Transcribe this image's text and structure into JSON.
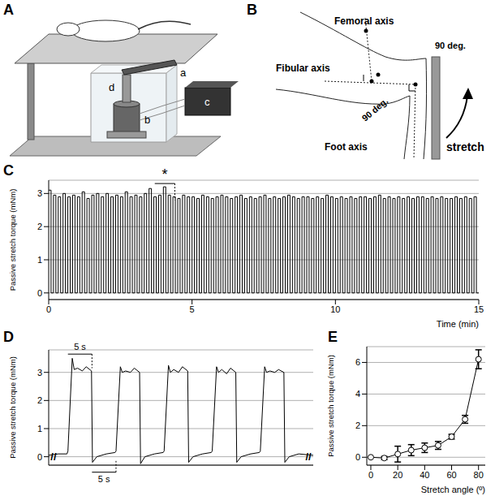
{
  "panels": [
    "A",
    "B",
    "C",
    "D",
    "E"
  ],
  "diagram_A": {
    "parts": [
      "a",
      "b",
      "c",
      "d"
    ]
  },
  "diagram_B": {
    "femoral": "Femoral axis",
    "fibular": "Fibular axis",
    "foot": "Foot axis",
    "angle": "90 deg.",
    "stretch": "stretch"
  },
  "chart_data": [
    {
      "type": "line",
      "y_label": "Passive stretch torque (mNm)",
      "x_label": "Time (min)",
      "xlim": [
        0,
        15
      ],
      "xticks": [
        0,
        5,
        10,
        15
      ],
      "ylim": [
        -0.2,
        3.4
      ],
      "yticks": [
        0,
        1,
        2,
        3
      ],
      "grid": true,
      "annotations": [
        {
          "text": "*",
          "x": [
            3.7,
            4.4
          ],
          "y": 3.3
        }
      ],
      "series": [
        {
          "color": "#000000",
          "line_style": "step",
          "marker": "none",
          "x": [
            0,
            0.083,
            0.167,
            0.25,
            0.333,
            0.417,
            0.5,
            0.583,
            0.667,
            0.75,
            0.833,
            0.917,
            1,
            1.083,
            1.167,
            1.25,
            1.333,
            1.417,
            1.5,
            1.583,
            1.667,
            1.75,
            1.833,
            1.917,
            2,
            2.083,
            2.167,
            2.25,
            2.333,
            2.417,
            2.5,
            2.583,
            2.667,
            2.75,
            2.833,
            2.917,
            3,
            3.083,
            3.167,
            3.25,
            3.333,
            3.417,
            3.5,
            3.583,
            3.667,
            3.75,
            3.833,
            3.917,
            4,
            4.083,
            4.167,
            4.25,
            4.333,
            4.417,
            4.5,
            4.583,
            4.667,
            4.75,
            4.833,
            4.917,
            5,
            5.083,
            5.167,
            5.25,
            5.333,
            5.417,
            5.5,
            5.583,
            5.667,
            5.75,
            5.833,
            5.917,
            6,
            6.083,
            6.167,
            6.25,
            6.333,
            6.417,
            6.5,
            6.583,
            6.667,
            6.75,
            6.833,
            6.917,
            7,
            7.083,
            7.167,
            7.25,
            7.333,
            7.417,
            7.5,
            7.583,
            7.667,
            7.75,
            7.833,
            7.917,
            8,
            8.083,
            8.167,
            8.25,
            8.333,
            8.417,
            8.5,
            8.583,
            8.667,
            8.75,
            8.833,
            8.917,
            9,
            9.083,
            9.167,
            9.25,
            9.333,
            9.417,
            9.5,
            9.583,
            9.667,
            9.75,
            9.833,
            9.917,
            10,
            10.083,
            10.167,
            10.25,
            10.333,
            10.417,
            10.5,
            10.583,
            10.667,
            10.75,
            10.833,
            10.917,
            11,
            11.083,
            11.167,
            11.25,
            11.333,
            11.417,
            11.5,
            11.583,
            11.667,
            11.75,
            11.833,
            11.917,
            12,
            12.083,
            12.167,
            12.25,
            12.333,
            12.417,
            12.5,
            12.583,
            12.667,
            12.75,
            12.833,
            12.917,
            13,
            13.083,
            13.167,
            13.25,
            13.333,
            13.417,
            13.5,
            13.583,
            13.667,
            13.75,
            13.833,
            13.917,
            14,
            14.083,
            14.167,
            14.25,
            14.333,
            14.417,
            14.5,
            14.583,
            14.667,
            14.75,
            14.833,
            14.917,
            15
          ],
          "values": [
            3.1,
            0,
            2.95,
            0,
            2.9,
            0,
            3.0,
            0,
            2.9,
            0,
            2.95,
            0,
            2.9,
            0,
            3.05,
            0,
            2.85,
            0,
            2.95,
            0,
            3.0,
            0,
            2.9,
            0,
            3.0,
            0,
            2.9,
            0,
            2.95,
            0,
            2.9,
            0,
            3.05,
            0,
            2.9,
            0,
            2.95,
            0,
            2.9,
            0,
            3.0,
            0,
            3.15,
            0,
            2.9,
            0,
            2.95,
            0,
            3.2,
            0,
            2.95,
            0,
            2.9,
            0,
            2.85,
            0,
            2.95,
            0,
            2.9,
            0,
            2.9,
            0,
            2.85,
            0,
            2.95,
            0,
            2.9,
            0,
            2.85,
            0,
            2.9,
            0,
            2.95,
            0,
            2.9,
            0,
            2.85,
            0,
            2.9,
            0,
            2.95,
            0,
            2.85,
            0,
            2.9,
            0,
            2.85,
            0,
            2.9,
            0,
            2.95,
            0,
            2.85,
            0,
            2.9,
            0,
            2.85,
            0,
            2.9,
            0,
            2.95,
            0,
            2.9,
            0,
            2.85,
            0,
            2.9,
            0,
            2.9,
            0,
            2.85,
            0,
            2.9,
            0,
            2.85,
            0,
            2.95,
            0,
            2.9,
            0,
            2.85,
            0,
            2.9,
            0,
            2.85,
            0,
            2.9,
            0,
            2.85,
            0,
            2.9,
            0,
            2.9,
            0,
            2.85,
            0,
            2.9,
            0,
            2.95,
            0,
            2.85,
            0,
            2.9,
            0,
            2.85,
            0,
            2.9,
            0,
            2.85,
            0,
            2.9,
            0,
            2.85,
            0,
            2.9,
            0,
            2.9,
            0,
            2.85,
            0,
            2.9,
            0,
            2.85,
            0,
            2.9,
            0,
            2.85,
            0,
            2.85,
            0,
            2.9,
            0,
            2.85,
            0,
            2.9,
            0,
            2.85,
            0,
            2.9,
            0,
            0
          ]
        }
      ]
    },
    {
      "type": "line",
      "y_label": "Passive stretch torque (mNm)",
      "xlim": [
        0,
        55
      ],
      "ylim": [
        -0.3,
        3.8
      ],
      "yticks": [
        0,
        1,
        2,
        3
      ],
      "grid": true,
      "tick_labels": "y",
      "annotations": [
        {
          "text": "5 s",
          "x": [
            4,
            9
          ],
          "y": 3.65
        },
        {
          "text": "5 s",
          "x": [
            9,
            14
          ],
          "y": -0.55
        }
      ],
      "break_marks": {
        "text": "//",
        "x": [
          1,
          54
        ],
        "y": 0
      },
      "series": [
        {
          "color": "#000000",
          "line_style": "solid",
          "marker": "none",
          "x": [
            0,
            2,
            3.8,
            4,
            4.9,
            5.3,
            6,
            7,
            7.8,
            8.9,
            9.1,
            10,
            12,
            13.8,
            14,
            14.9,
            15.3,
            16,
            17,
            17.8,
            18.9,
            19.1,
            20,
            22,
            23.8,
            24,
            24.9,
            25.3,
            26,
            27,
            27.8,
            28.9,
            29.1,
            30,
            32,
            33.8,
            34,
            34.9,
            35.3,
            36,
            37,
            37.8,
            38.9,
            39.1,
            40,
            42,
            43.8,
            44,
            44.9,
            45.3,
            46,
            47,
            47.8,
            48.9,
            49.1,
            50,
            52,
            55
          ],
          "values": [
            0.05,
            0.1,
            0.1,
            0.2,
            3.5,
            3.1,
            3.15,
            3.05,
            3.2,
            3.05,
            -0.2,
            0,
            0.1,
            0.15,
            0.2,
            3.2,
            3.0,
            3.05,
            3.0,
            3.15,
            3.0,
            -0.25,
            0,
            0.1,
            0.15,
            0.2,
            3.25,
            3.0,
            3.1,
            3.0,
            3.2,
            3.05,
            -0.2,
            0,
            0.1,
            0.15,
            0.2,
            3.2,
            3.0,
            3.1,
            2.95,
            3.15,
            3.0,
            -0.2,
            0,
            0.1,
            0.15,
            0.2,
            3.2,
            3.0,
            3.05,
            3.0,
            3.1,
            3.0,
            -0.2,
            0,
            0.1,
            0.05
          ]
        }
      ]
    },
    {
      "type": "line",
      "y_label": "Passive stretch torque (mNm)",
      "x_label": "Stretch angle (º)",
      "xlim": [
        -3,
        85
      ],
      "xticks": [
        0,
        20,
        40,
        60,
        80
      ],
      "ylim": [
        -0.5,
        7
      ],
      "yticks": [
        0,
        2,
        4,
        6
      ],
      "grid": true,
      "series": [
        {
          "color": "#000000",
          "line_style": "solid",
          "marker": "open_circle",
          "x": [
            0,
            10,
            20,
            30,
            40,
            50,
            60,
            70,
            80
          ],
          "values": [
            0,
            -0.05,
            0.2,
            0.45,
            0.6,
            0.75,
            1.3,
            2.4,
            6.2
          ],
          "error": [
            0,
            0.1,
            0.5,
            0.35,
            0.3,
            0.25,
            0.15,
            0.25,
            0.6
          ]
        }
      ]
    }
  ]
}
